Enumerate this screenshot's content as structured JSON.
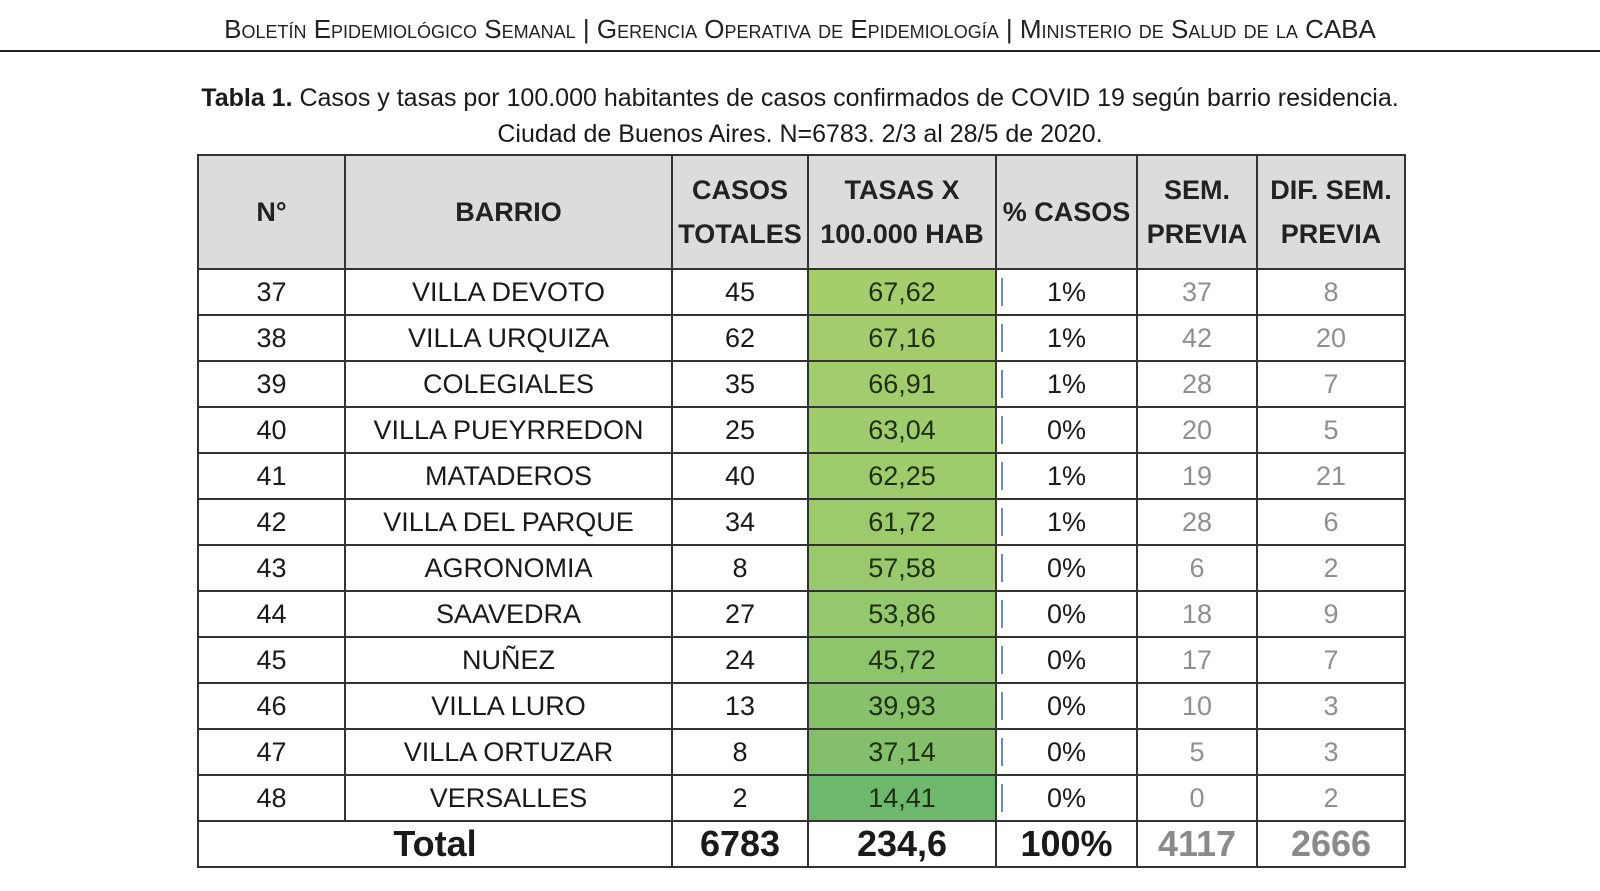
{
  "header": {
    "text": "Boletín Epidemiológico Semanal | Gerencia Operativa de Epidemiología | Ministerio de Salud de la CABA"
  },
  "caption": {
    "label": "Tabla 1.",
    "line1": " Casos y tasas por 100.000 habitantes de casos confirmados de COVID 19 según barrio residencia.",
    "line2": "Ciudad de Buenos Aires. N=6783. 2/3 al 28/5 de 2020."
  },
  "table": {
    "headers": [
      "N°",
      "BARRIO",
      "CASOS TOTALES",
      "TASAS X 100.000 HAB",
      "% CASOS",
      "SEM. PREVIA",
      "DIF. SEM. PREVIA"
    ],
    "rows": [
      {
        "n": "37",
        "barrio": "VILLA DEVOTO",
        "casos": "45",
        "tasa": "67,62",
        "pct": "1%",
        "sem": "37",
        "dif": "8",
        "color": "#a4ce6c"
      },
      {
        "n": "38",
        "barrio": "VILLA URQUIZA",
        "casos": "62",
        "tasa": "67,16",
        "pct": "1%",
        "sem": "42",
        "dif": "20",
        "color": "#a3cd6c"
      },
      {
        "n": "39",
        "barrio": "COLEGIALES",
        "casos": "35",
        "tasa": "66,91",
        "pct": "1%",
        "sem": "28",
        "dif": "7",
        "color": "#a2cd6c"
      },
      {
        "n": "40",
        "barrio": "VILLA PUEYRREDON",
        "casos": "25",
        "tasa": "63,04",
        "pct": "0%",
        "sem": "20",
        "dif": "5",
        "color": "#9fcc6c"
      },
      {
        "n": "41",
        "barrio": "MATADEROS",
        "casos": "40",
        "tasa": "62,25",
        "pct": "1%",
        "sem": "19",
        "dif": "21",
        "color": "#9ecb6c"
      },
      {
        "n": "42",
        "barrio": "VILLA DEL PARQUE",
        "casos": "34",
        "tasa": "61,72",
        "pct": "1%",
        "sem": "28",
        "dif": "6",
        "color": "#9dcb6c"
      },
      {
        "n": "43",
        "barrio": "AGRONOMIA",
        "casos": "8",
        "tasa": "57,58",
        "pct": "0%",
        "sem": "6",
        "dif": "2",
        "color": "#99c96c"
      },
      {
        "n": "44",
        "barrio": "SAAVEDRA",
        "casos": "27",
        "tasa": "53,86",
        "pct": "0%",
        "sem": "18",
        "dif": "9",
        "color": "#95c76c"
      },
      {
        "n": "45",
        "barrio": "NUÑEZ",
        "casos": "24",
        "tasa": "45,72",
        "pct": "0%",
        "sem": "17",
        "dif": "7",
        "color": "#8dc46c"
      },
      {
        "n": "46",
        "barrio": "VILLA LURO",
        "casos": "13",
        "tasa": "39,93",
        "pct": "0%",
        "sem": "10",
        "dif": "3",
        "color": "#87c16c"
      },
      {
        "n": "47",
        "barrio": "VILLA ORTUZAR",
        "casos": "8",
        "tasa": "37,14",
        "pct": "0%",
        "sem": "5",
        "dif": "3",
        "color": "#84c06c"
      },
      {
        "n": "48",
        "barrio": "VERSALLES",
        "casos": "2",
        "tasa": "14,41",
        "pct": "0%",
        "sem": "0",
        "dif": "2",
        "color": "#6db86c"
      }
    ],
    "total": {
      "label": "Total",
      "casos": "6783",
      "tasa": "234,6",
      "pct": "100%",
      "sem": "4117",
      "dif": "2666"
    }
  }
}
